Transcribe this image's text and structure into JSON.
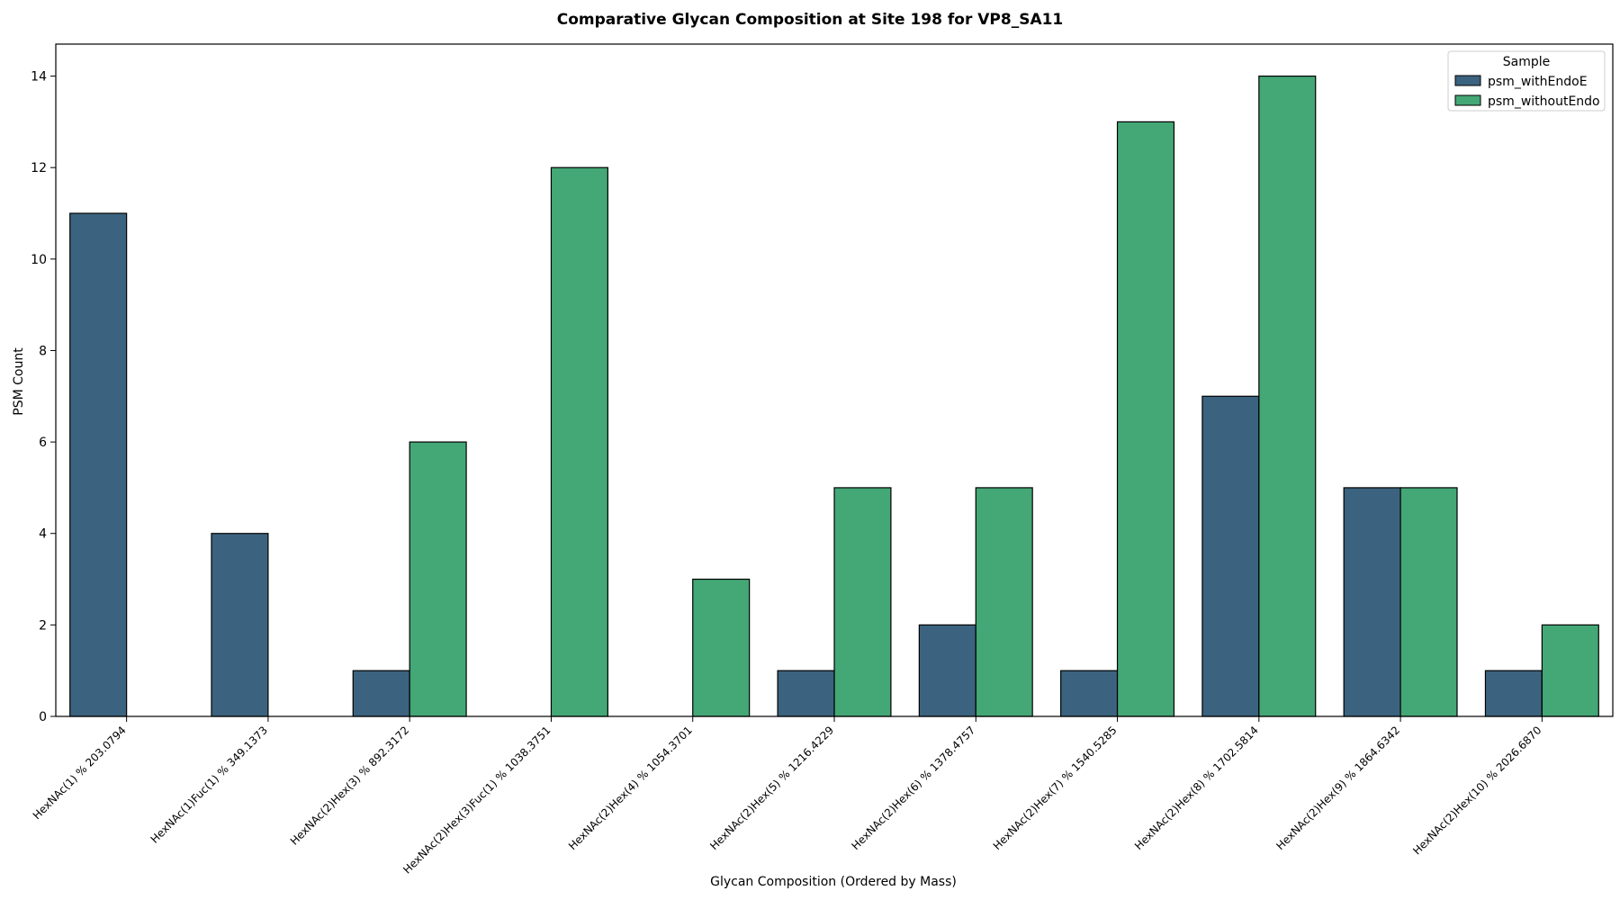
{
  "chart_data": {
    "type": "bar",
    "title": "Comparative Glycan Composition at Site 198 for VP8_SA11",
    "xlabel": "Glycan Composition (Ordered by Mass)",
    "ylabel": "PSM Count",
    "ylim": [
      0,
      14.7
    ],
    "yticks": [
      0,
      2,
      4,
      6,
      8,
      10,
      12,
      14
    ],
    "grid": false,
    "legend": {
      "title": "Sample",
      "placement": "top-right"
    },
    "categories": [
      "HexNAc(1) % 203.0794",
      "HexNAc(1)Fuc(1) % 349.1373",
      "HexNAc(2)Hex(3) % 892.3172",
      "HexNAc(2)Hex(3)Fuc(1) % 1038.3751",
      "HexNAc(2)Hex(4) % 1054.3701",
      "HexNAc(2)Hex(5) % 1216.4229",
      "HexNAc(2)Hex(6) % 1378.4757",
      "HexNAc(2)Hex(7) % 1540.5285",
      "HexNAc(2)Hex(8) % 1702.5814",
      "HexNAc(2)Hex(9) % 1864.6342",
      "HexNAc(2)Hex(10) % 2026.6870"
    ],
    "series": [
      {
        "name": "psm_withEndoE",
        "color": "#3b637f",
        "values": [
          11,
          4,
          1,
          0,
          0,
          1,
          2,
          1,
          7,
          5,
          1
        ]
      },
      {
        "name": "psm_withoutEndo",
        "color": "#44a776",
        "values": [
          0,
          0,
          6,
          12,
          3,
          5,
          5,
          13,
          14,
          5,
          2
        ]
      }
    ]
  }
}
